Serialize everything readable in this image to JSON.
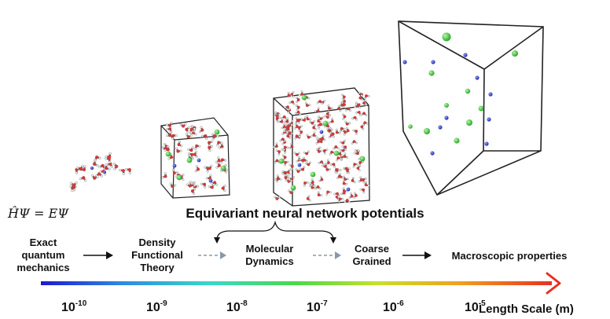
{
  "equation": "ĤΨ = EΨ",
  "headline": "Equivariant neural network potentials",
  "stages": [
    {
      "text": "Exact\nquantum\nmechanics"
    },
    {
      "text": "Density\nFunctional\nTheory"
    },
    {
      "text": "Molecular\nDynamics"
    },
    {
      "text": "Coarse\nGrained"
    },
    {
      "text": "Macroscopic properties"
    }
  ],
  "axis": {
    "label": "Length Scale (m)",
    "ticks": [
      {
        "base": "10",
        "exp": "-10"
      },
      {
        "base": "10",
        "exp": "-9"
      },
      {
        "base": "10",
        "exp": "-8"
      },
      {
        "base": "10",
        "exp": "-7"
      },
      {
        "base": "10",
        "exp": "-6"
      },
      {
        "base": "10",
        "exp": "-5"
      }
    ]
  },
  "colors": {
    "gradient": [
      "#1a1ad0",
      "#2e8be0",
      "#38d8c8",
      "#49d94a",
      "#c9e02a",
      "#f0a020",
      "#e83020"
    ],
    "arrow_head": "#e83020",
    "dashed_arrow": "#8a98a8",
    "atom_oxygen": "#d23a3a",
    "atom_hydrogen": "#f2f2f2",
    "atom_green": "#34c234",
    "atom_blue": "#2d3fd0"
  }
}
